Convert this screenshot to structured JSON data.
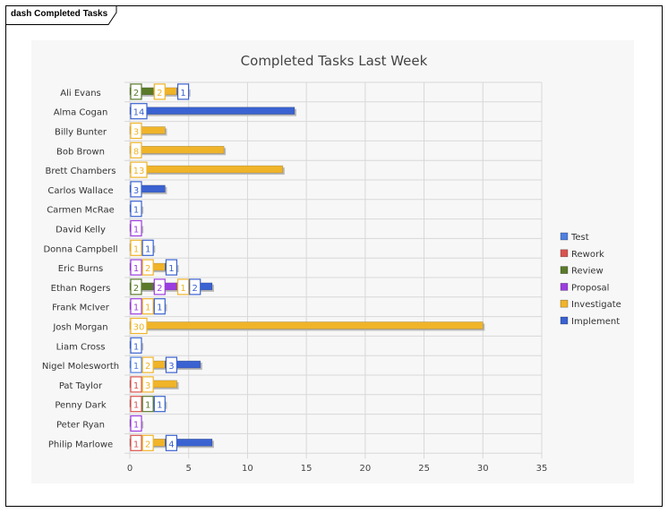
{
  "frame": {
    "title": "dash Completed Tasks"
  },
  "chart_data": {
    "type": "bar",
    "orientation": "horizontal",
    "stacked": true,
    "title": "Completed Tasks Last Week",
    "xlim": [
      0,
      35
    ],
    "xticks": [
      0,
      5,
      10,
      15,
      20,
      25,
      30,
      35
    ],
    "grid": true,
    "legend_position": "right",
    "categories": [
      "Ali Evans",
      "Alma Cogan",
      "Billy Bunter",
      "Bob Brown",
      "Brett Chambers",
      "Carlos Wallace",
      "Carmen McRae",
      "David Kelly",
      "Donna Campbell",
      "Eric Burns",
      "Ethan Rogers",
      "Frank McIver",
      "Josh Morgan",
      "Liam Cross",
      "Nigel Molesworth",
      "Pat Taylor",
      "Penny Dark",
      "Peter Ryan",
      "Philip Marlowe"
    ],
    "series": [
      {
        "name": "Test",
        "color": "#4f7fe0",
        "values": [
          0,
          0,
          0,
          0,
          0,
          0,
          0,
          0,
          0,
          0,
          0,
          0,
          0,
          0,
          1,
          0,
          0,
          0,
          0
        ]
      },
      {
        "name": "Rework",
        "color": "#d9534f",
        "values": [
          0,
          0,
          0,
          0,
          0,
          0,
          0,
          0,
          0,
          0,
          0,
          0,
          0,
          0,
          0,
          1,
          1,
          0,
          1
        ]
      },
      {
        "name": "Review",
        "color": "#5a7a2a",
        "values": [
          2,
          0,
          0,
          0,
          0,
          0,
          0,
          0,
          0,
          0,
          2,
          0,
          0,
          0,
          0,
          0,
          1,
          0,
          0
        ]
      },
      {
        "name": "Proposal",
        "color": "#9b3de0",
        "values": [
          0,
          0,
          0,
          0,
          0,
          0,
          0,
          1,
          0,
          1,
          2,
          1,
          0,
          0,
          0,
          0,
          0,
          1,
          0
        ]
      },
      {
        "name": "Investigate",
        "color": "#f0b429",
        "values": [
          2,
          0,
          3,
          8,
          13,
          0,
          0,
          0,
          1,
          2,
          1,
          1,
          30,
          0,
          2,
          3,
          0,
          0,
          2
        ]
      },
      {
        "name": "Implement",
        "color": "#3a62d0",
        "values": [
          1,
          14,
          0,
          0,
          0,
          3,
          1,
          0,
          1,
          1,
          2,
          1,
          0,
          1,
          3,
          0,
          1,
          0,
          4
        ]
      }
    ]
  }
}
